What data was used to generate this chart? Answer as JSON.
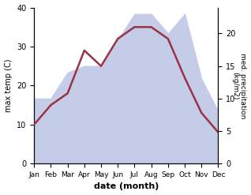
{
  "months": [
    "Jan",
    "Feb",
    "Mar",
    "Apr",
    "May",
    "Jun",
    "Jul",
    "Aug",
    "Sep",
    "Oct",
    "Nov",
    "Dec"
  ],
  "max_temp": [
    10,
    15,
    18,
    29,
    25,
    32,
    35,
    35,
    32,
    22,
    13,
    8
  ],
  "precipitation": [
    10,
    10,
    14,
    15,
    15,
    19,
    23,
    23,
    20,
    23,
    13,
    8
  ],
  "temp_color": "#993344",
  "precip_fill_color": "#c5cce8",
  "temp_ylim": [
    0,
    40
  ],
  "precip_ylim": [
    0,
    24
  ],
  "precip_right_ticks": [
    0,
    5,
    10,
    15,
    20
  ],
  "temp_left_ticks": [
    0,
    10,
    20,
    30,
    40
  ],
  "xlabel": "date (month)",
  "ylabel_left": "max temp (C)",
  "ylabel_right": "med. precipitation\n(kg/m2)",
  "bg_color": "#ffffff"
}
